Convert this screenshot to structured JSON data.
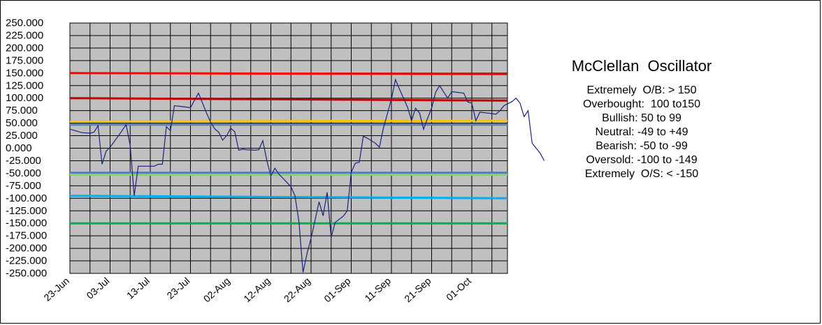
{
  "chart_data": {
    "type": "line",
    "title": "",
    "xlabel": "",
    "ylabel": "",
    "ylim": [
      -250,
      250
    ],
    "y_ticks": [
      250,
      225,
      200,
      175,
      150,
      125,
      100,
      75,
      50,
      25,
      0,
      -25,
      -50,
      -75,
      -100,
      -125,
      -150,
      -175,
      -200,
      -225,
      -250
    ],
    "y_tick_labels": [
      "250.000",
      "225.000",
      "200.000",
      "175.000",
      "150.000",
      "125.000",
      "100.000",
      "75.000",
      "50.000",
      "25.000",
      "0.000",
      "-25.000",
      "-50.000",
      "-75.000",
      "-100.000",
      "-125.000",
      "-150.000",
      "-175.000",
      "-200.000",
      "-225.000",
      "-250.000"
    ],
    "x_tick_labels": [
      "23-Jun",
      "03-Jul",
      "13-Jul",
      "23-Jul",
      "02-Aug",
      "12-Aug",
      "22-Aug",
      "01-Sep",
      "11-Sep",
      "21-Sep",
      "01-Oct"
    ],
    "x_range_days": [
      0,
      108
    ],
    "grid": true,
    "plot_background": "#c0c0c0",
    "series": [
      {
        "color": "#1a237e",
        "points": [
          [
            0,
            38
          ],
          [
            3,
            31
          ],
          [
            5,
            30
          ],
          [
            6,
            32
          ],
          [
            7,
            45
          ],
          [
            8,
            -32
          ],
          [
            9,
            -6
          ],
          [
            10,
            2
          ],
          [
            12,
            24
          ],
          [
            14,
            47
          ],
          [
            15,
            5
          ],
          [
            16,
            -95
          ],
          [
            17,
            -36
          ],
          [
            19,
            -36
          ],
          [
            21,
            -36
          ],
          [
            22,
            -32
          ],
          [
            23,
            -32
          ],
          [
            24,
            43
          ],
          [
            25,
            35
          ],
          [
            26,
            85
          ],
          [
            28,
            83
          ],
          [
            30,
            81
          ],
          [
            32,
            110
          ],
          [
            34,
            70
          ],
          [
            35,
            52
          ],
          [
            36,
            39
          ],
          [
            37,
            32
          ],
          [
            38,
            16
          ],
          [
            39,
            25
          ],
          [
            40,
            40
          ],
          [
            41,
            33
          ],
          [
            42,
            -4
          ],
          [
            43,
            -2
          ],
          [
            44,
            -3
          ],
          [
            46,
            -4
          ],
          [
            47,
            -3
          ],
          [
            48,
            15
          ],
          [
            49,
            -25
          ],
          [
            50,
            -55
          ],
          [
            51,
            -40
          ],
          [
            52,
            -52
          ],
          [
            53,
            -60
          ],
          [
            55,
            -77
          ],
          [
            56,
            -95
          ],
          [
            57,
            -148
          ],
          [
            58,
            -248
          ],
          [
            59,
            -210
          ],
          [
            60,
            -180
          ],
          [
            62,
            -107
          ],
          [
            63,
            -135
          ],
          [
            64,
            -88
          ],
          [
            65,
            -178
          ],
          [
            66,
            -148
          ],
          [
            68,
            -136
          ],
          [
            69,
            -125
          ],
          [
            70,
            -48
          ],
          [
            71,
            -30
          ],
          [
            72,
            -28
          ],
          [
            73,
            24
          ],
          [
            74,
            20
          ],
          [
            75,
            15
          ],
          [
            76,
            10
          ],
          [
            77,
            2
          ],
          [
            78,
            40
          ],
          [
            80,
            98
          ],
          [
            81,
            137
          ],
          [
            82,
            118
          ],
          [
            84,
            82
          ],
          [
            85,
            55
          ],
          [
            86,
            80
          ],
          [
            87,
            70
          ],
          [
            88,
            38
          ],
          [
            89,
            60
          ],
          [
            90,
            80
          ],
          [
            91,
            112
          ],
          [
            92,
            125
          ],
          [
            93,
            112
          ],
          [
            94,
            100
          ],
          [
            95,
            113
          ],
          [
            98,
            110
          ],
          [
            99,
            92
          ],
          [
            100,
            90
          ],
          [
            101,
            55
          ],
          [
            102,
            72
          ],
          [
            104,
            70
          ],
          [
            106,
            68
          ],
          [
            107,
            75
          ],
          [
            108,
            85
          ],
          [
            110,
            93
          ],
          [
            111,
            100
          ],
          [
            112,
            90
          ],
          [
            113,
            63
          ],
          [
            114,
            75
          ],
          [
            115,
            10
          ],
          [
            117,
            -10
          ],
          [
            118,
            -25
          ]
        ]
      }
    ],
    "reference_lines": [
      {
        "y": 150,
        "y_end": 148,
        "color": "#ff0000"
      },
      {
        "y": 100,
        "y_end": 95,
        "color": "#c00000"
      },
      {
        "y": 53,
        "y_end": 55,
        "color": "#ffc000"
      },
      {
        "y": 47,
        "y_end": 47,
        "color": "#4f81bd"
      },
      {
        "y": -49,
        "y_end": -49,
        "color": "#4f81bd"
      },
      {
        "y": -53,
        "y_end": -53,
        "color": "#92d050"
      },
      {
        "y": -95,
        "y_end": -100,
        "color": "#00b0f0"
      },
      {
        "y": -150,
        "y_end": -150,
        "color": "#00b050"
      }
    ],
    "annotation": {
      "title": "McClellan  Oscillator",
      "lines": [
        "Extremely  O/B: > 150",
        "Overbought:  100 to150",
        "Bullish: 50 to 99",
        "Neutral: -49 to +49",
        "Bearish: -50 to -99",
        "Oversold: -100 to -149",
        "Extremely  O/S: < -150"
      ]
    }
  }
}
